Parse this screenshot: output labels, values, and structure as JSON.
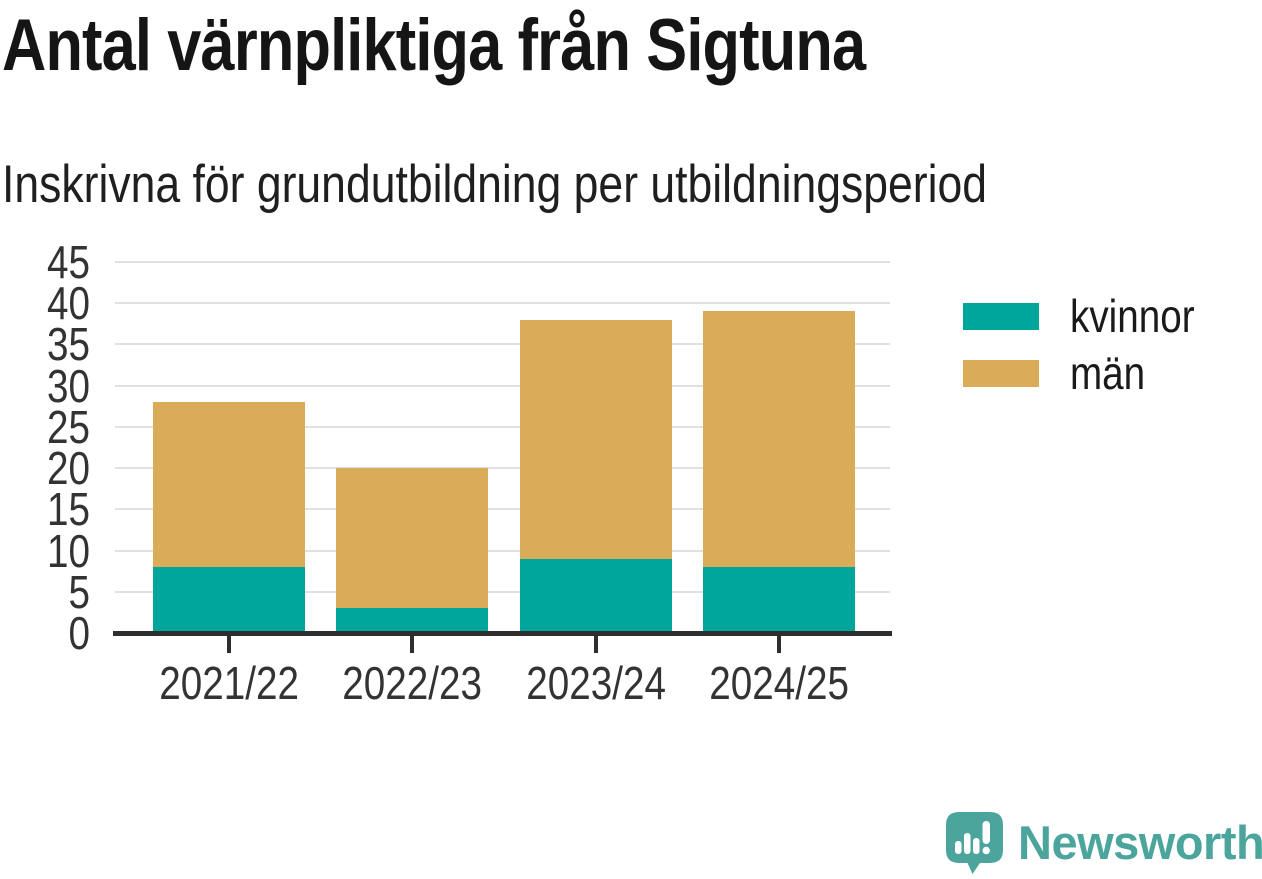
{
  "header": {
    "title": "Antal värnpliktiga från Sigtuna",
    "subtitle": "Inskrivna för grundutbildning per utbildningsperiod"
  },
  "chart_data": {
    "type": "bar",
    "stacked": true,
    "title": "Antal värnpliktiga från Sigtuna",
    "subtitle": "Inskrivna för grundutbildning per utbildningsperiod",
    "categories": [
      "2021/22",
      "2022/23",
      "2023/24",
      "2024/25"
    ],
    "series": [
      {
        "name": "kvinnor",
        "color": "#00A59B",
        "values": [
          8,
          3,
          9,
          8
        ]
      },
      {
        "name": "män",
        "color": "#DAAC58",
        "values": [
          20,
          17,
          29,
          31
        ]
      }
    ],
    "totals": [
      28,
      20,
      38,
      39
    ],
    "xlabel": "",
    "ylabel": "",
    "ylim": [
      0,
      45
    ],
    "yticks": [
      0,
      5,
      10,
      15,
      20,
      25,
      30,
      35,
      40,
      45
    ],
    "grid": "horizontal",
    "legend_position": "right"
  },
  "legend": {
    "items": [
      {
        "label": "kvinnor",
        "color": "#00A59B"
      },
      {
        "label": "män",
        "color": "#DAAC58"
      }
    ]
  },
  "branding": {
    "logo_text": "Newsworthy",
    "logo_color": "#4BA59D",
    "logo_icon": "bar-chart-speech-bubble-icon"
  },
  "colors": {
    "kvinnor": "#00A59B",
    "man": "#DAAC58",
    "gridline": "#E0E0E0",
    "axis": "#2E2E2E",
    "tick_label": "#333333",
    "title_text": "#151515",
    "background": "#FFFFFF"
  }
}
